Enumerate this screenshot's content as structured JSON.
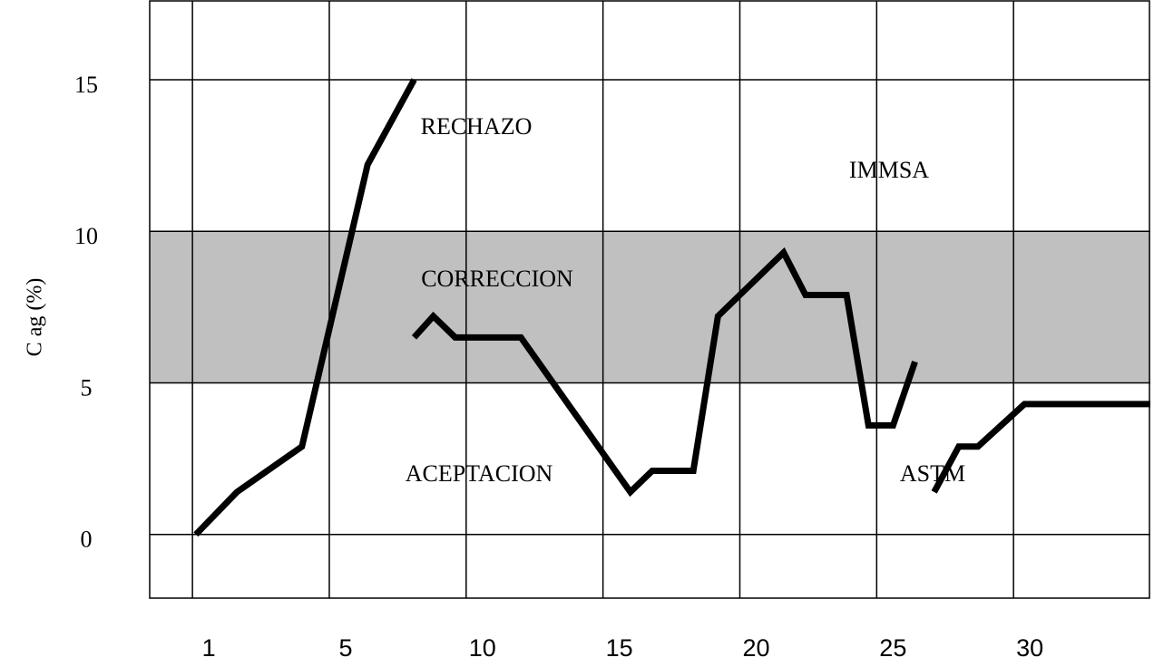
{
  "chart_data": {
    "type": "line",
    "y_label": "C  ag (%)",
    "xticks": [
      1,
      5,
      10,
      15,
      20,
      25,
      30
    ],
    "xlim": [
      -0.25,
      35
    ],
    "yticks": [
      0,
      5,
      10,
      15
    ],
    "ylim": [
      -2.1,
      17.6
    ],
    "grid": true,
    "bands": [
      {
        "from": 5,
        "to": 10,
        "color": "#c0c0c0"
      }
    ],
    "annotations": [
      "RECHAZO",
      "IMMSA",
      "CORRECCION",
      "ACEPTACION",
      "ASTM"
    ],
    "series": [
      {
        "color": "#000000",
        "x": [
          1.1,
          2.3,
          4.2,
          6.4,
          8.1
        ],
        "values": [
          0,
          1.4,
          2.9,
          12.2,
          15
        ]
      },
      {
        "color": "#000000",
        "x": [
          8.1,
          8.8,
          9.6,
          12,
          16,
          16.8,
          18.3,
          19.2,
          21.6,
          22.4,
          23.9,
          24.7,
          25.6,
          26.4
        ],
        "values": [
          6.5,
          7.2,
          6.5,
          6.5,
          1.4,
          2.1,
          2.1,
          7.2,
          9.3,
          7.9,
          7.9,
          3.6,
          3.6,
          5.7
        ]
      },
      {
        "color": "#000000",
        "x": [
          27.1,
          28,
          28.7,
          30.4,
          35
        ],
        "values": [
          1.4,
          2.9,
          2.9,
          4.3,
          4.3
        ]
      }
    ]
  }
}
